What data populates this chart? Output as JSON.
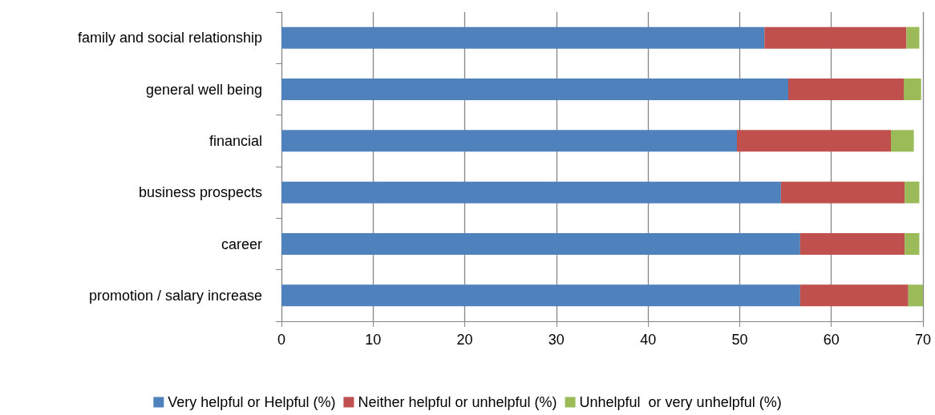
{
  "chart_data": {
    "type": "bar",
    "orientation": "horizontal",
    "stacked": true,
    "categories": [
      "family and social relationship",
      "general well being",
      "financial",
      "business prospects",
      "career",
      "promotion / salary increase"
    ],
    "series": [
      {
        "name": "Very helpful or Helpful (%)",
        "color": "#4f81bd",
        "values": [
          52.7,
          55.3,
          49.7,
          54.5,
          56.6,
          56.6
        ]
      },
      {
        "name": "Neither helpful or unhelpful (%)",
        "color": "#c0504d",
        "values": [
          15.5,
          12.6,
          16.8,
          13.5,
          11.4,
          11.8
        ]
      },
      {
        "name": "Unhelpful  or very unhelpful (%)",
        "color": "#9bbb59",
        "values": [
          1.4,
          1.9,
          2.5,
          1.6,
          1.6,
          1.6
        ]
      }
    ],
    "xlim": [
      0,
      70
    ],
    "xticks": [
      0,
      10,
      20,
      30,
      40,
      50,
      60,
      70
    ],
    "grid": "x",
    "legend": "bottom"
  }
}
